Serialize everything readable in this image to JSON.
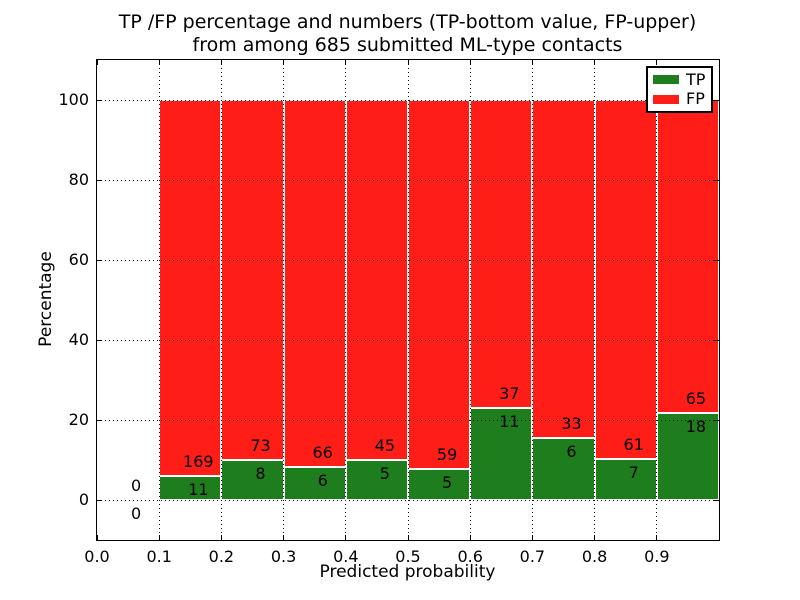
{
  "figure": {
    "title_line1": "TP /FP percentage and numbers (TP-bottom value, FP-upper)",
    "title_line2": "from among 685 submitted ML-type contacts",
    "xlabel": "Predicted probability",
    "ylabel": "Percentage",
    "background_color": "#ffffff",
    "text_color": "#000000"
  },
  "legend": {
    "position": "upper-right",
    "items": [
      {
        "label": "TP",
        "color": "#1e7e1e"
      },
      {
        "label": "FP",
        "color": "#ff1d18"
      }
    ]
  },
  "axes": {
    "xticks": [
      "0.0",
      "0.1",
      "0.2",
      "0.3",
      "0.4",
      "0.5",
      "0.6",
      "0.7",
      "0.8",
      "0.9"
    ],
    "yticks": [
      "0",
      "20",
      "40",
      "60",
      "80",
      "100"
    ],
    "grid_style": "dotted",
    "tick_direction": "in"
  },
  "chart_data": {
    "type": "bar",
    "stacked": true,
    "title": "TP /FP percentage and numbers (TP-bottom value, FP-upper)\nfrom among 685 submitted ML-type contacts",
    "xlabel": "Predicted probability",
    "ylabel": "Percentage",
    "xlim": [
      0.0,
      1.0
    ],
    "ylim": [
      -10,
      110
    ],
    "bin_width": 0.1,
    "total_contacts": 685,
    "legend_position": "upper right",
    "grid": true,
    "bins": [
      {
        "x_start": 0.0,
        "x_end": 0.1,
        "tp_count": 0,
        "fp_count": 0,
        "tp_pct": 0,
        "fp_pct": 0
      },
      {
        "x_start": 0.1,
        "x_end": 0.2,
        "tp_count": 11,
        "fp_count": 169,
        "tp_pct": 6.11,
        "fp_pct": 93.89
      },
      {
        "x_start": 0.2,
        "x_end": 0.3,
        "tp_count": 8,
        "fp_count": 73,
        "tp_pct": 9.88,
        "fp_pct": 90.12
      },
      {
        "x_start": 0.3,
        "x_end": 0.4,
        "tp_count": 6,
        "fp_count": 66,
        "tp_pct": 8.33,
        "fp_pct": 91.67
      },
      {
        "x_start": 0.4,
        "x_end": 0.5,
        "tp_count": 5,
        "fp_count": 45,
        "tp_pct": 10.0,
        "fp_pct": 90.0
      },
      {
        "x_start": 0.5,
        "x_end": 0.6,
        "tp_count": 5,
        "fp_count": 59,
        "tp_pct": 7.81,
        "fp_pct": 92.19
      },
      {
        "x_start": 0.6,
        "x_end": 0.7,
        "tp_count": 11,
        "fp_count": 37,
        "tp_pct": 22.92,
        "fp_pct": 77.08
      },
      {
        "x_start": 0.7,
        "x_end": 0.8,
        "tp_count": 6,
        "fp_count": 33,
        "tp_pct": 15.38,
        "fp_pct": 84.62
      },
      {
        "x_start": 0.8,
        "x_end": 0.9,
        "tp_count": 7,
        "fp_count": 61,
        "tp_pct": 10.29,
        "fp_pct": 89.71
      },
      {
        "x_start": 0.9,
        "x_end": 1.0,
        "tp_count": 18,
        "fp_count": 65,
        "tp_pct": 21.69,
        "fp_pct": 78.31
      }
    ],
    "series": [
      {
        "name": "TP",
        "color": "#1e7e1e",
        "counts": [
          0,
          11,
          8,
          6,
          5,
          5,
          11,
          6,
          7,
          18
        ]
      },
      {
        "name": "FP",
        "color": "#ff1d18",
        "counts": [
          0,
          169,
          73,
          66,
          45,
          59,
          37,
          33,
          61,
          65
        ]
      }
    ]
  }
}
